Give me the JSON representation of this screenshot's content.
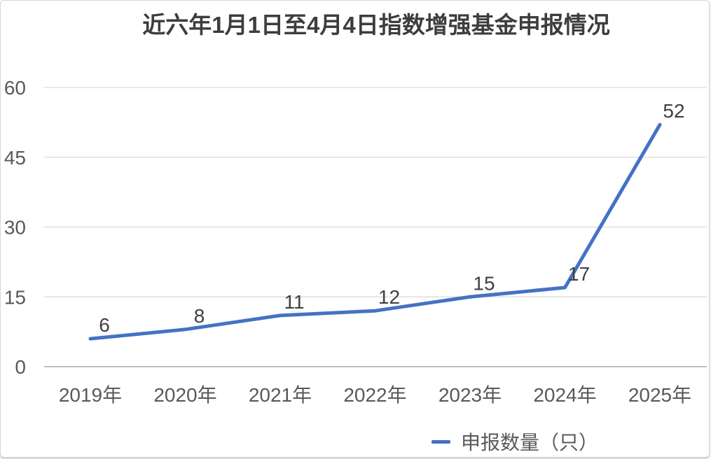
{
  "chart_data": {
    "type": "line",
    "title": "近六年1月1日至4月4日指数增强基金申报情况",
    "categories": [
      "2019年",
      "2020年",
      "2021年",
      "2022年",
      "2023年",
      "2024年",
      "2025年"
    ],
    "series": [
      {
        "name": "申报数量（只）",
        "values": [
          6,
          8,
          11,
          12,
          15,
          17,
          52
        ]
      }
    ],
    "xlabel": "",
    "ylabel": "",
    "ylim": [
      0,
      60
    ],
    "yticks": [
      0,
      15,
      30,
      45,
      60
    ],
    "grid": true,
    "legend_position": "bottom",
    "data_labels": true
  },
  "colors": {
    "line": "#4472C4",
    "gridline": "#D9D9D9",
    "axis_line": "#BFBFBF",
    "tick_label": "#595959",
    "data_label": "#404040",
    "title": "#3d3d3d"
  }
}
